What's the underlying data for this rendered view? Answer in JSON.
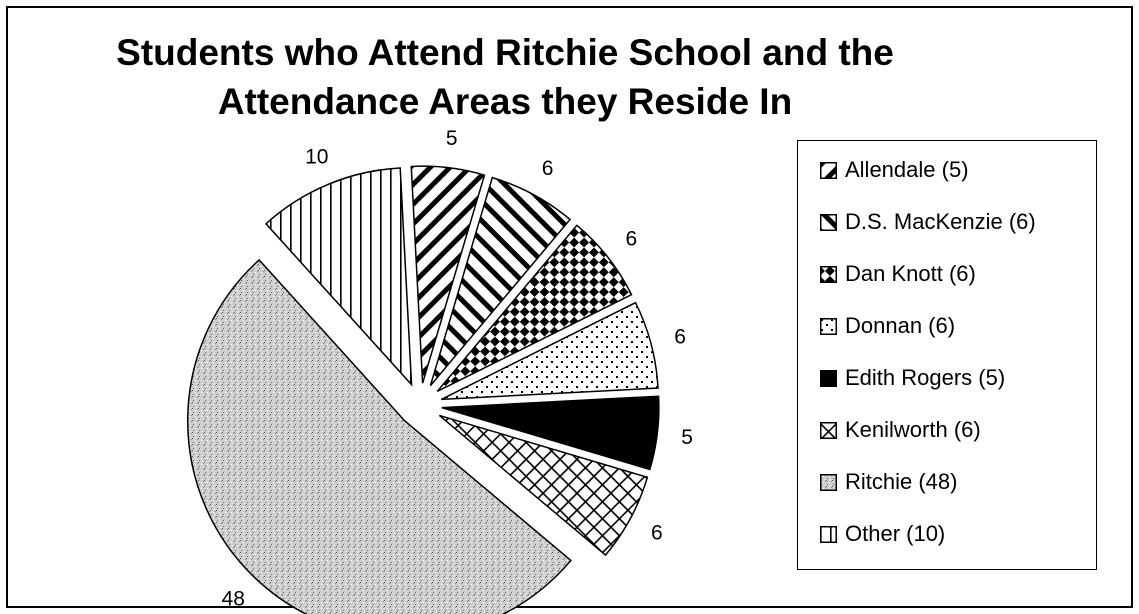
{
  "chart_data": {
    "type": "pie",
    "title_lines": [
      "Students who Attend Ritchie School and the",
      "Attendance Areas they Reside In"
    ],
    "slices": [
      {
        "name": "Allendale",
        "value": 5,
        "label": "5",
        "legend": "Allendale (5)",
        "pattern": "diag-up"
      },
      {
        "name": "D.S. MacKenzie",
        "value": 6,
        "label": "6",
        "legend": "D.S. MacKenzie (6)",
        "pattern": "diag-down"
      },
      {
        "name": "Dan Knott",
        "value": 6,
        "label": "6",
        "legend": "Dan Knott (6)",
        "pattern": "checker"
      },
      {
        "name": "Donnan",
        "value": 6,
        "label": "6",
        "legend": "Donnan (6)",
        "pattern": "dots"
      },
      {
        "name": "Edith Rogers",
        "value": 5,
        "label": "5",
        "legend": "Edith Rogers (5)",
        "pattern": "solid"
      },
      {
        "name": "Kenilworth",
        "value": 6,
        "label": "6",
        "legend": "Kenilworth (6)",
        "pattern": "crosshatch"
      },
      {
        "name": "Ritchie",
        "value": 48,
        "label": "48",
        "legend": "Ritchie (48)",
        "pattern": "stipple"
      },
      {
        "name": "Other",
        "value": 10,
        "label": "10",
        "legend": "Other (10)",
        "pattern": "vertical"
      }
    ],
    "exploded": true,
    "legend_position": "right"
  },
  "colors": {
    "ink": "#000000",
    "background": "#ffffff",
    "stipple": "#c8c8c8"
  }
}
